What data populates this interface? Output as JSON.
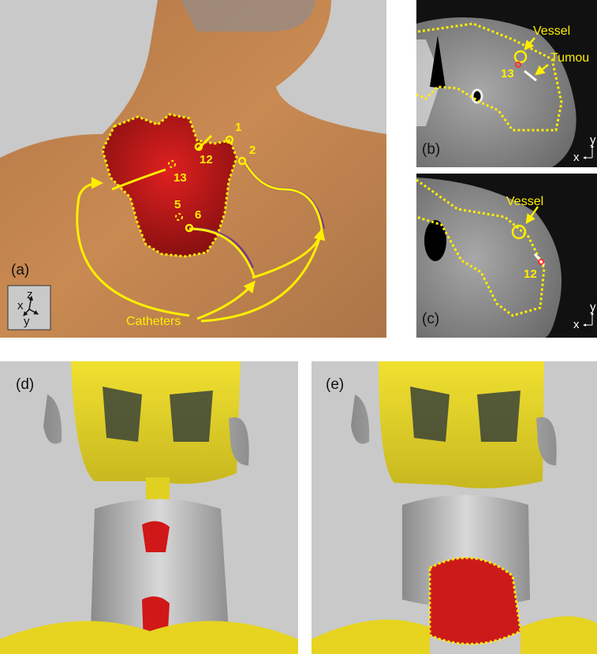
{
  "panels": [
    {
      "label": "(a)",
      "points": [
        "1",
        "2",
        "12",
        "13",
        "5",
        "6"
      ],
      "caption": "Catheters",
      "axes": [
        "z",
        "x",
        "y"
      ]
    },
    {
      "label": "(b)",
      "annotations": [
        "Vessel",
        "Tumou",
        "13"
      ],
      "axes": [
        "y",
        "x"
      ]
    },
    {
      "label": "(c)",
      "annotations": [
        "Vessel",
        "12"
      ],
      "axes": [
        "y",
        "x"
      ]
    },
    {
      "label": "(d)"
    },
    {
      "label": "(e)"
    }
  ]
}
